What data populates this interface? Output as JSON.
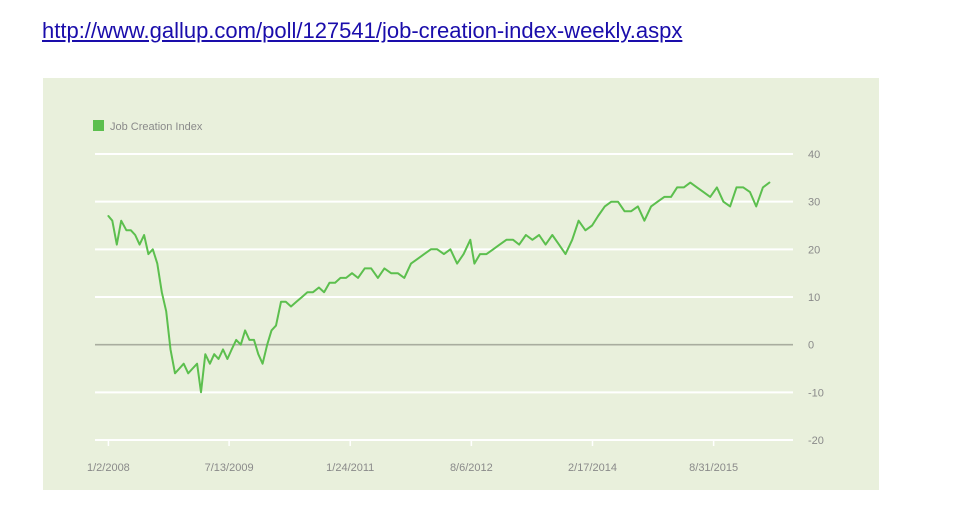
{
  "link": {
    "text": "http://www.gallup.com/poll/127541/job-creation-index-weekly.aspx"
  },
  "colors": {
    "panel_bg": "#e9f0dc",
    "line": "#5cbf4e",
    "zero_line": "#a9ad9f",
    "grid": "#ffffff",
    "tick_text": "#8a8a8a",
    "link": "#1a0dab"
  },
  "chart_data": {
    "type": "line",
    "title": "",
    "xlabel": "",
    "ylabel": "",
    "legend": {
      "position": "top-left",
      "entries": [
        "Job Creation Index"
      ]
    },
    "grid": true,
    "ylim": [
      -20,
      40
    ],
    "yticks": [
      40,
      30,
      20,
      10,
      0,
      -10,
      -20
    ],
    "xlim": [
      "2007-11-01",
      "2016-09-01"
    ],
    "xticks": [
      "2008-01-02",
      "2009-07-13",
      "2011-01-24",
      "2012-08-06",
      "2014-02-17",
      "2015-08-31"
    ],
    "xtick_labels": [
      "1/2/2008",
      "7/13/2009",
      "1/24/2011",
      "8/6/2012",
      "2/17/2014",
      "8/31/2015"
    ],
    "series": [
      {
        "name": "Job Creation Index",
        "x": [
          "2008-01-02",
          "2008-01-20",
          "2008-02-10",
          "2008-03-01",
          "2008-03-25",
          "2008-04-15",
          "2008-05-05",
          "2008-05-25",
          "2008-06-15",
          "2008-07-05",
          "2008-07-25",
          "2008-08-15",
          "2008-09-05",
          "2008-09-25",
          "2008-10-15",
          "2008-11-05",
          "2008-11-25",
          "2008-12-15",
          "2009-01-05",
          "2009-01-25",
          "2009-02-15",
          "2009-03-05",
          "2009-03-25",
          "2009-04-15",
          "2009-05-05",
          "2009-05-25",
          "2009-06-15",
          "2009-07-05",
          "2009-07-25",
          "2009-08-15",
          "2009-09-05",
          "2009-09-25",
          "2009-10-15",
          "2009-11-05",
          "2009-11-25",
          "2009-12-15",
          "2010-01-05",
          "2010-01-25",
          "2010-02-15",
          "2010-03-10",
          "2010-04-01",
          "2010-04-25",
          "2010-05-20",
          "2010-06-15",
          "2010-07-10",
          "2010-08-05",
          "2010-09-01",
          "2010-09-25",
          "2010-10-20",
          "2010-11-15",
          "2010-12-10",
          "2011-01-05",
          "2011-02-01",
          "2011-03-01",
          "2011-04-01",
          "2011-05-01",
          "2011-06-01",
          "2011-07-01",
          "2011-08-01",
          "2011-09-01",
          "2011-10-01",
          "2011-11-01",
          "2011-12-01",
          "2012-01-01",
          "2012-02-01",
          "2012-03-01",
          "2012-04-01",
          "2012-05-01",
          "2012-06-01",
          "2012-07-01",
          "2012-08-01",
          "2012-08-20",
          "2012-09-15",
          "2012-10-15",
          "2012-11-15",
          "2012-12-15",
          "2013-01-15",
          "2013-02-15",
          "2013-03-15",
          "2013-04-15",
          "2013-05-15",
          "2013-06-15",
          "2013-07-15",
          "2013-08-15",
          "2013-09-15",
          "2013-10-15",
          "2013-11-15",
          "2013-12-15",
          "2014-01-15",
          "2014-02-15",
          "2014-03-15",
          "2014-04-15",
          "2014-05-15",
          "2014-06-15",
          "2014-07-15",
          "2014-08-15",
          "2014-09-15",
          "2014-10-15",
          "2014-11-15",
          "2014-12-15",
          "2015-01-15",
          "2015-02-15",
          "2015-03-15",
          "2015-04-15",
          "2015-05-15",
          "2015-06-15",
          "2015-07-15",
          "2015-08-15",
          "2015-09-15",
          "2015-10-15",
          "2015-11-15",
          "2015-12-15",
          "2016-01-15",
          "2016-02-15",
          "2016-03-15",
          "2016-04-15",
          "2016-05-15"
        ],
        "values": [
          27,
          26,
          21,
          26,
          24,
          24,
          23,
          21,
          23,
          19,
          20,
          17,
          11,
          7,
          -1,
          -6,
          -5,
          -4,
          -6,
          -5,
          -4,
          -10,
          -2,
          -4,
          -2,
          -3,
          -1,
          -3,
          -1,
          1,
          0,
          3,
          1,
          1,
          -2,
          -4,
          0,
          3,
          4,
          9,
          9,
          8,
          9,
          10,
          11,
          11,
          12,
          11,
          13,
          13,
          14,
          14,
          15,
          14,
          16,
          16,
          14,
          16,
          15,
          15,
          14,
          17,
          18,
          19,
          20,
          20,
          19,
          20,
          17,
          19,
          22,
          17,
          19,
          19,
          20,
          21,
          22,
          22,
          21,
          23,
          22,
          23,
          21,
          23,
          21,
          19,
          22,
          26,
          24,
          25,
          27,
          29,
          30,
          30,
          28,
          28,
          29,
          26,
          29,
          30,
          31,
          31,
          33,
          33,
          34,
          33,
          32,
          31,
          33,
          30,
          29,
          33,
          33,
          32,
          29,
          33,
          34
        ]
      }
    ]
  }
}
